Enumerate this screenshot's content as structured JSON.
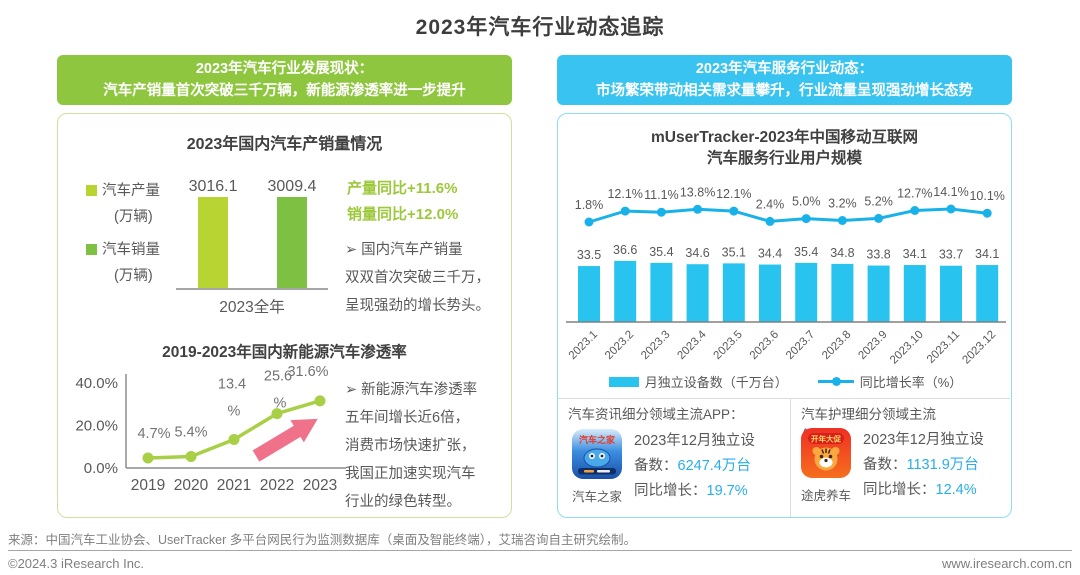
{
  "page_title": "2023年汽车行业动态追踪",
  "colors": {
    "green_header": "#8fc63f",
    "cyan_header": "#38c3f0",
    "bar_production": "#b7d433",
    "bar_sales": "#7ec142",
    "nev_line": "#a8cf45",
    "arrow_pink": "#f0718a",
    "cyan_bar": "#29c3ef",
    "cyan_line": "#18b1e8",
    "cyan_value_text": "#29aee8",
    "green_stat_text": "#9cc83b"
  },
  "left_panel": {
    "header": "2023年汽车行业发展现状：\n汽车产销量首次突破三千万辆，新能源渗透率进一步提升",
    "stats": "产量同比+11.6%\n销量同比+12.0%",
    "bullet1": "➢ 国内汽车产销量\n双双首次突破三千万，\n呈现强劲的增长势头。",
    "bullet2": "➢ 新能源汽车渗透率\n五年间增长近6倍，\n消费市场快速扩张，\n我国正加速实现汽车\n行业的绿色转型。"
  },
  "right_panel": {
    "header": "2023年汽车服务行业动态：\n市场繁荣带动相关需求量攀升，行业流量呈现强劲增长态势",
    "apps": [
      {
        "category": "汽车资讯细分领域主流APP：",
        "app_name": "汽车之家",
        "icon_text": "汽车之家",
        "stat_prefix": "2023年12月独立设备数：",
        "stat_value": "6247.4万台",
        "growth_prefix": "同比增长：",
        "growth_value": "19.7%"
      },
      {
        "category": "汽车护理细分领域主流APP：",
        "app_name": "途虎养车",
        "icon_text": "开年大促",
        "stat_prefix": "2023年12月独立设备数：",
        "stat_value": "1131.9万台",
        "growth_prefix": "同比增长：",
        "growth_value": "12.4%"
      }
    ]
  },
  "chart_data": [
    {
      "id": "production_sales_2023",
      "type": "bar",
      "title": "2023年国内汽车产销量情况",
      "categories": [
        "2023全年"
      ],
      "series": [
        {
          "name": "汽车产量",
          "unit": "(万辆)",
          "values": [
            3016.1
          ],
          "color": "#b7d433"
        },
        {
          "name": "汽车销量",
          "unit": "(万辆)",
          "values": [
            3009.4
          ],
          "color": "#7ec142"
        }
      ],
      "annotations": [
        "产量同比+11.6%",
        "销量同比+12.0%"
      ]
    },
    {
      "id": "nev_penetration",
      "type": "line",
      "title": "2019-2023年国内新能源汽车渗透率",
      "categories": [
        "2019",
        "2020",
        "2021",
        "2022",
        "2023"
      ],
      "values": [
        4.7,
        5.4,
        13.4,
        25.6,
        31.6
      ],
      "labels": [
        "4.7%",
        "5.4%",
        "13.4%",
        "25.6%",
        "31.6%"
      ],
      "yticks": [
        "40.0%",
        "20.0%",
        "0.0%"
      ],
      "ylim": [
        0,
        40
      ],
      "color": "#a8cf45"
    },
    {
      "id": "auto_service_users_2023",
      "type": "combo",
      "title": "mUserTracker-2023年中国移动互联网\n汽车服务行业用户规模",
      "categories": [
        "2023.1",
        "2023.2",
        "2023.3",
        "2023.4",
        "2023.5",
        "2023.6",
        "2023.7",
        "2023.8",
        "2023.9",
        "2023.10",
        "2023.11",
        "2023.12"
      ],
      "series": [
        {
          "name": "月独立设备数（千万台）",
          "type": "bar",
          "values": [
            33.5,
            36.6,
            35.4,
            34.6,
            35.1,
            34.4,
            35.4,
            34.8,
            33.8,
            34.1,
            33.7,
            34.1
          ],
          "color": "#29c3ef"
        },
        {
          "name": "同比增长率（%）",
          "type": "line",
          "values": [
            1.8,
            12.1,
            11.1,
            13.8,
            12.1,
            2.4,
            5.0,
            3.2,
            5.2,
            12.7,
            14.1,
            10.1
          ],
          "color": "#18b1e8"
        }
      ],
      "legend_position": "bottom"
    }
  ],
  "footer": {
    "source": "来源：中国汽车工业协会、UserTracker 多平台网民行为监测数据库（桌面及智能终端），艾瑞咨询自主研究绘制。",
    "copyright": "©2024.3 iResearch Inc.",
    "website": "www.iresearch.com.cn"
  }
}
